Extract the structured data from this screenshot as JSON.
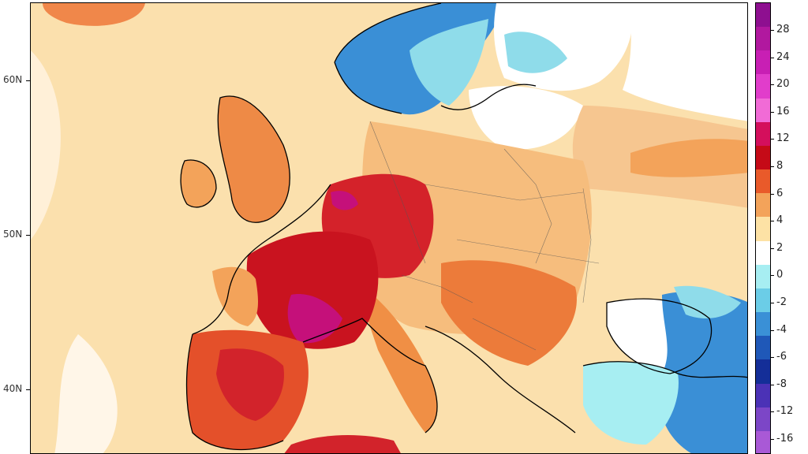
{
  "map": {
    "latitude_labels": [
      "60N",
      "50N",
      "40N"
    ],
    "color_scale": {
      "labels": [
        "28",
        "24",
        "20",
        "16",
        "12",
        "8",
        "6",
        "4",
        "2",
        "0",
        "-2",
        "-4",
        "-6",
        "-8",
        "-12",
        "-16"
      ],
      "colors": [
        "#8e0f90",
        "#b1189f",
        "#c81fb4",
        "#e13dcb",
        "#f16bd6",
        "#d40f5c",
        "#c50a17",
        "#e95a2a",
        "#f3a35a",
        "#fde2a5",
        "#ffffff",
        "#a7eef2",
        "#6bcde7",
        "#3a90d6",
        "#1f58b8",
        "#142e98",
        "#4b32b6",
        "#7c46c7",
        "#a959d6"
      ]
    },
    "colors": {
      "ocean_warm": "#fbd9a0",
      "land_warm": "#f4b26f",
      "hot": "#e4502a",
      "very_hot": "#c9131f",
      "extreme": "#c5107a",
      "cool": "#8fdcea",
      "cold": "#3a8fd6",
      "neutral": "#ffffff",
      "coast": "#000000"
    }
  }
}
